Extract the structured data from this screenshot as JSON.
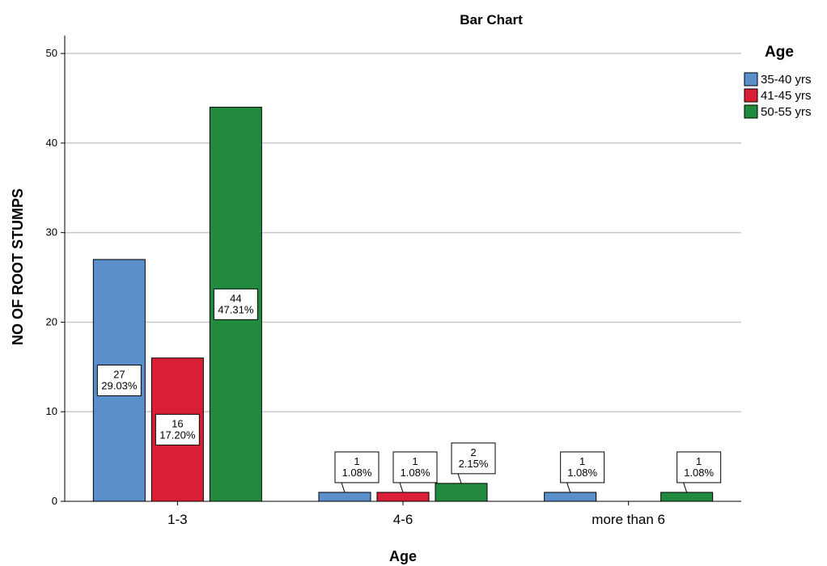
{
  "chart_data": {
    "type": "bar",
    "title": "Bar Chart",
    "xlabel": "Age",
    "ylabel": "NO OF ROOT STUMPS",
    "categories": [
      "1-3",
      "4-6",
      "more than 6"
    ],
    "ylim": [
      0,
      52
    ],
    "yticks": [
      0,
      10,
      20,
      30,
      40,
      50
    ],
    "grid": true,
    "legend": {
      "title": "Age",
      "position": "right"
    },
    "series": [
      {
        "name": "35-40 yrs",
        "color": "#5b8fcc",
        "values": [
          27,
          1,
          1
        ],
        "labels": [
          "29.03%",
          "1.08%",
          "1.08%"
        ]
      },
      {
        "name": "41-45 yrs",
        "color": "#d91f35",
        "values": [
          16,
          1,
          null
        ],
        "labels": [
          "17.20%",
          "1.08%",
          null
        ]
      },
      {
        "name": "50-55 yrs",
        "color": "#218a3e",
        "values": [
          44,
          2,
          1
        ],
        "labels": [
          "47.31%",
          "2.15%",
          "1.08%"
        ]
      }
    ]
  }
}
